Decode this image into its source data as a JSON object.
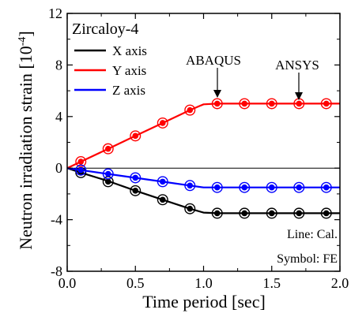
{
  "chart_data": {
    "type": "line",
    "xlabel": "Time period [sec]",
    "ylabel": "Neutron irradiation strain [10",
    "ylabel_exponent": "-4",
    "ylabel_suffix": "]",
    "xlim": [
      0.0,
      2.0
    ],
    "ylim": [
      -8,
      12
    ],
    "x_ticks": [
      "0.0",
      "0.5",
      "1.0",
      "1.5",
      "2.0"
    ],
    "y_ticks": [
      "-8",
      "-4",
      "0",
      "4",
      "8",
      "12"
    ],
    "grid": false,
    "legend_placement": "top-left",
    "legend_title": "Zircaloy-4",
    "series": [
      {
        "name": "X axis",
        "color": "#000000",
        "line_x": [
          0.0,
          0.1,
          0.3,
          0.5,
          0.7,
          0.9,
          1.0,
          1.1,
          1.3,
          1.5,
          1.7,
          1.9,
          2.0
        ],
        "line_y": [
          0.0,
          -0.35,
          -1.0,
          -1.75,
          -2.45,
          -3.15,
          -3.45,
          -3.5,
          -3.5,
          -3.5,
          -3.5,
          -3.5,
          -3.5
        ],
        "symbol_x": [
          0.1,
          0.3,
          0.5,
          0.7,
          0.9,
          1.1,
          1.3,
          1.5,
          1.7,
          1.9
        ],
        "symbol_y": [
          -0.35,
          -1.05,
          -1.75,
          -2.45,
          -3.15,
          -3.5,
          -3.5,
          -3.5,
          -3.5,
          -3.5
        ]
      },
      {
        "name": "Y axis",
        "color": "#ff0000",
        "line_x": [
          0.0,
          0.1,
          0.3,
          0.5,
          0.7,
          0.9,
          1.0,
          1.1,
          1.3,
          1.5,
          1.7,
          1.9,
          2.0
        ],
        "line_y": [
          0.0,
          0.5,
          1.5,
          2.5,
          3.5,
          4.5,
          4.95,
          5.0,
          5.0,
          5.0,
          5.0,
          5.0,
          5.0
        ],
        "symbol_x": [
          0.1,
          0.3,
          0.5,
          0.7,
          0.9,
          1.1,
          1.3,
          1.5,
          1.7,
          1.9
        ],
        "symbol_y": [
          0.5,
          1.5,
          2.5,
          3.5,
          4.5,
          5.0,
          5.0,
          5.0,
          5.0,
          5.0
        ]
      },
      {
        "name": "Z axis",
        "color": "#0000ff",
        "line_x": [
          0.0,
          0.1,
          0.3,
          0.5,
          0.7,
          0.9,
          1.0,
          1.1,
          1.3,
          1.5,
          1.7,
          1.9,
          2.0
        ],
        "line_y": [
          0.0,
          -0.15,
          -0.45,
          -0.75,
          -1.05,
          -1.35,
          -1.5,
          -1.5,
          -1.5,
          -1.5,
          -1.5,
          -1.5,
          -1.5
        ],
        "symbol_x": [
          0.1,
          0.3,
          0.5,
          0.7,
          0.9,
          1.1,
          1.3,
          1.5,
          1.7,
          1.9
        ],
        "symbol_y": [
          -0.15,
          -0.45,
          -0.75,
          -1.05,
          -1.35,
          -1.5,
          -1.5,
          -1.5,
          -1.5,
          -1.5
        ]
      }
    ],
    "annotations": [
      {
        "text": "ABAQUS",
        "x": 1.1,
        "y": 5.0
      },
      {
        "text": "ANSYS",
        "x": 1.7,
        "y": 5.0
      }
    ],
    "notes": [
      "Line: Cal.",
      "Symbol: FE"
    ]
  }
}
